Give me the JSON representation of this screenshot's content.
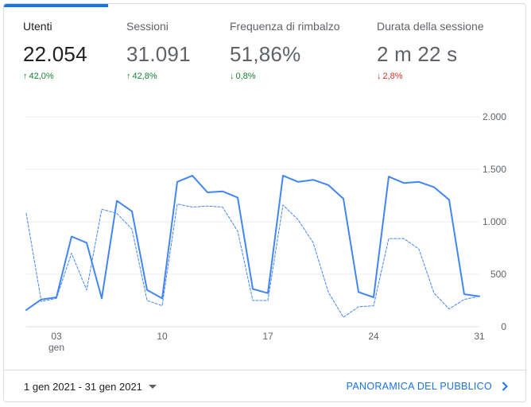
{
  "metrics": [
    {
      "label": "Utenti",
      "value": "22.054",
      "delta": "42,0%",
      "direction": "up",
      "color": "#188038",
      "active": true
    },
    {
      "label": "Sessioni",
      "value": "31.091",
      "delta": "42,8%",
      "direction": "up",
      "color": "#188038",
      "active": false
    },
    {
      "label": "Frequenza di rimbalzo",
      "value": "51,86%",
      "delta": "0,8%",
      "direction": "down",
      "color": "#188038",
      "active": false
    },
    {
      "label": "Durata della sessione",
      "value": "2 m 22 s",
      "delta": "2,8%",
      "direction": "down",
      "color": "#d93025",
      "active": false
    }
  ],
  "chart_data": {
    "type": "line",
    "x": [
      "1 gen",
      "2 gen",
      "3 gen",
      "4 gen",
      "5 gen",
      "6 gen",
      "7 gen",
      "8 gen",
      "9 gen",
      "10 gen",
      "11 gen",
      "12 gen",
      "13 gen",
      "14 gen",
      "15 gen",
      "16 gen",
      "17 gen",
      "18 gen",
      "19 gen",
      "20 gen",
      "21 gen",
      "22 gen",
      "23 gen",
      "24 gen",
      "25 gen",
      "26 gen",
      "27 gen",
      "28 gen",
      "29 gen",
      "30 gen",
      "31 gen"
    ],
    "x_tick_labels": [
      {
        "index": 2,
        "label": "03",
        "sublabel": "gen"
      },
      {
        "index": 9,
        "label": "10",
        "sublabel": ""
      },
      {
        "index": 16,
        "label": "17",
        "sublabel": ""
      },
      {
        "index": 23,
        "label": "24",
        "sublabel": ""
      },
      {
        "index": 30,
        "label": "31",
        "sublabel": ""
      }
    ],
    "y_ticks": [
      0,
      500,
      1000,
      1500,
      2000
    ],
    "y_tick_labels": [
      "0",
      "500",
      "1.000",
      "1.500",
      "2.000"
    ],
    "ylim": [
      0,
      2000
    ],
    "grid": true,
    "series": [
      {
        "style": "solid",
        "color": "#4285f4",
        "values": [
          160,
          260,
          280,
          860,
          800,
          270,
          1200,
          1100,
          350,
          270,
          1380,
          1440,
          1280,
          1290,
          1230,
          360,
          320,
          1440,
          1380,
          1400,
          1350,
          1220,
          330,
          280,
          1430,
          1370,
          1380,
          1330,
          1210,
          310,
          290
        ]
      },
      {
        "style": "dashed",
        "color": "#4285f4",
        "values": [
          1080,
          240,
          270,
          700,
          350,
          1120,
          1080,
          930,
          250,
          200,
          1170,
          1140,
          1150,
          1140,
          910,
          250,
          250,
          1160,
          1020,
          800,
          330,
          90,
          190,
          200,
          840,
          840,
          740,
          320,
          170,
          260,
          290
        ]
      }
    ]
  },
  "footer": {
    "date_range": "1 gen 2021 - 31 gen 2021",
    "link_label": "PANORAMICA DEL PUBBLICO"
  }
}
